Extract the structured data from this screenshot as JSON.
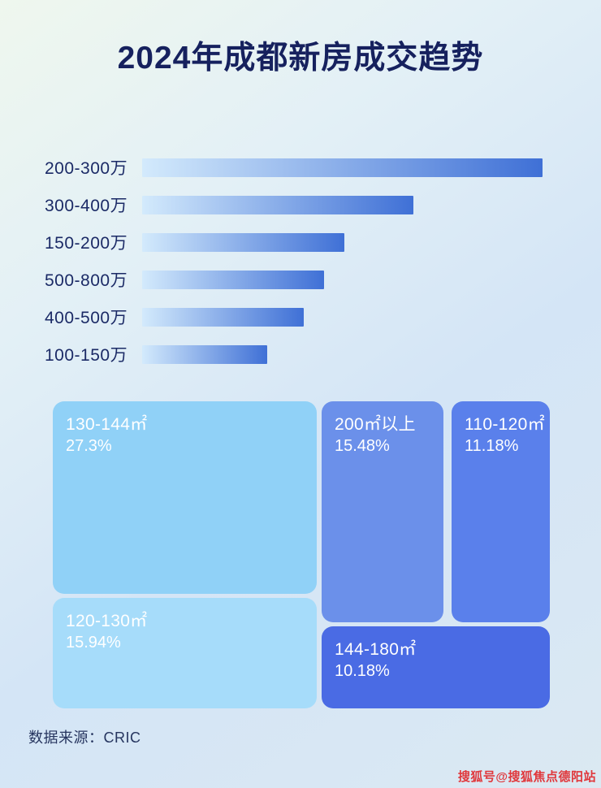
{
  "title": "2024年成都新房成交趋势",
  "footer": {
    "source_label": "数据来源：CRIC"
  },
  "watermark": "搜狐号@搜狐焦点德阳站",
  "colors": {
    "title_text": "#16215e",
    "bar_label_text": "#1b2a66",
    "bar_gradient_start": "#d3eafc",
    "bar_gradient_end": "#3f70d6",
    "watermark_red": "#e0383c"
  },
  "chart_data": [
    {
      "type": "bar",
      "orientation": "horizontal",
      "title": "2024年成都新房成交趋势",
      "categories": [
        "200-300万",
        "300-400万",
        "150-200万",
        "500-800万",
        "400-500万",
        "100-150万"
      ],
      "values": [
        99,
        67,
        50,
        45,
        40,
        31
      ],
      "value_unit": "estimated relative bar length, % of track (no numeric axis shown in image)",
      "xlabel": "",
      "ylabel": "",
      "grid": false,
      "legend": false,
      "data_labels_visible": false
    },
    {
      "type": "treemap",
      "title": "",
      "items": [
        {
          "label": "130-144㎡",
          "value_pct": 27.3,
          "display": "27.3%",
          "color": "#90d1f7"
        },
        {
          "label": "120-130㎡",
          "value_pct": 15.94,
          "display": "15.94%",
          "color": "#a6dcfa"
        },
        {
          "label": "200㎡以上",
          "value_pct": 15.48,
          "display": "15.48%",
          "color": "#6b90ea"
        },
        {
          "label": "110-120㎡",
          "value_pct": 11.18,
          "display": "11.18%",
          "color": "#5a80eb"
        },
        {
          "label": "144-180㎡",
          "value_pct": 10.18,
          "display": "10.18%",
          "color": "#4a6be4"
        }
      ],
      "legend": false
    }
  ]
}
